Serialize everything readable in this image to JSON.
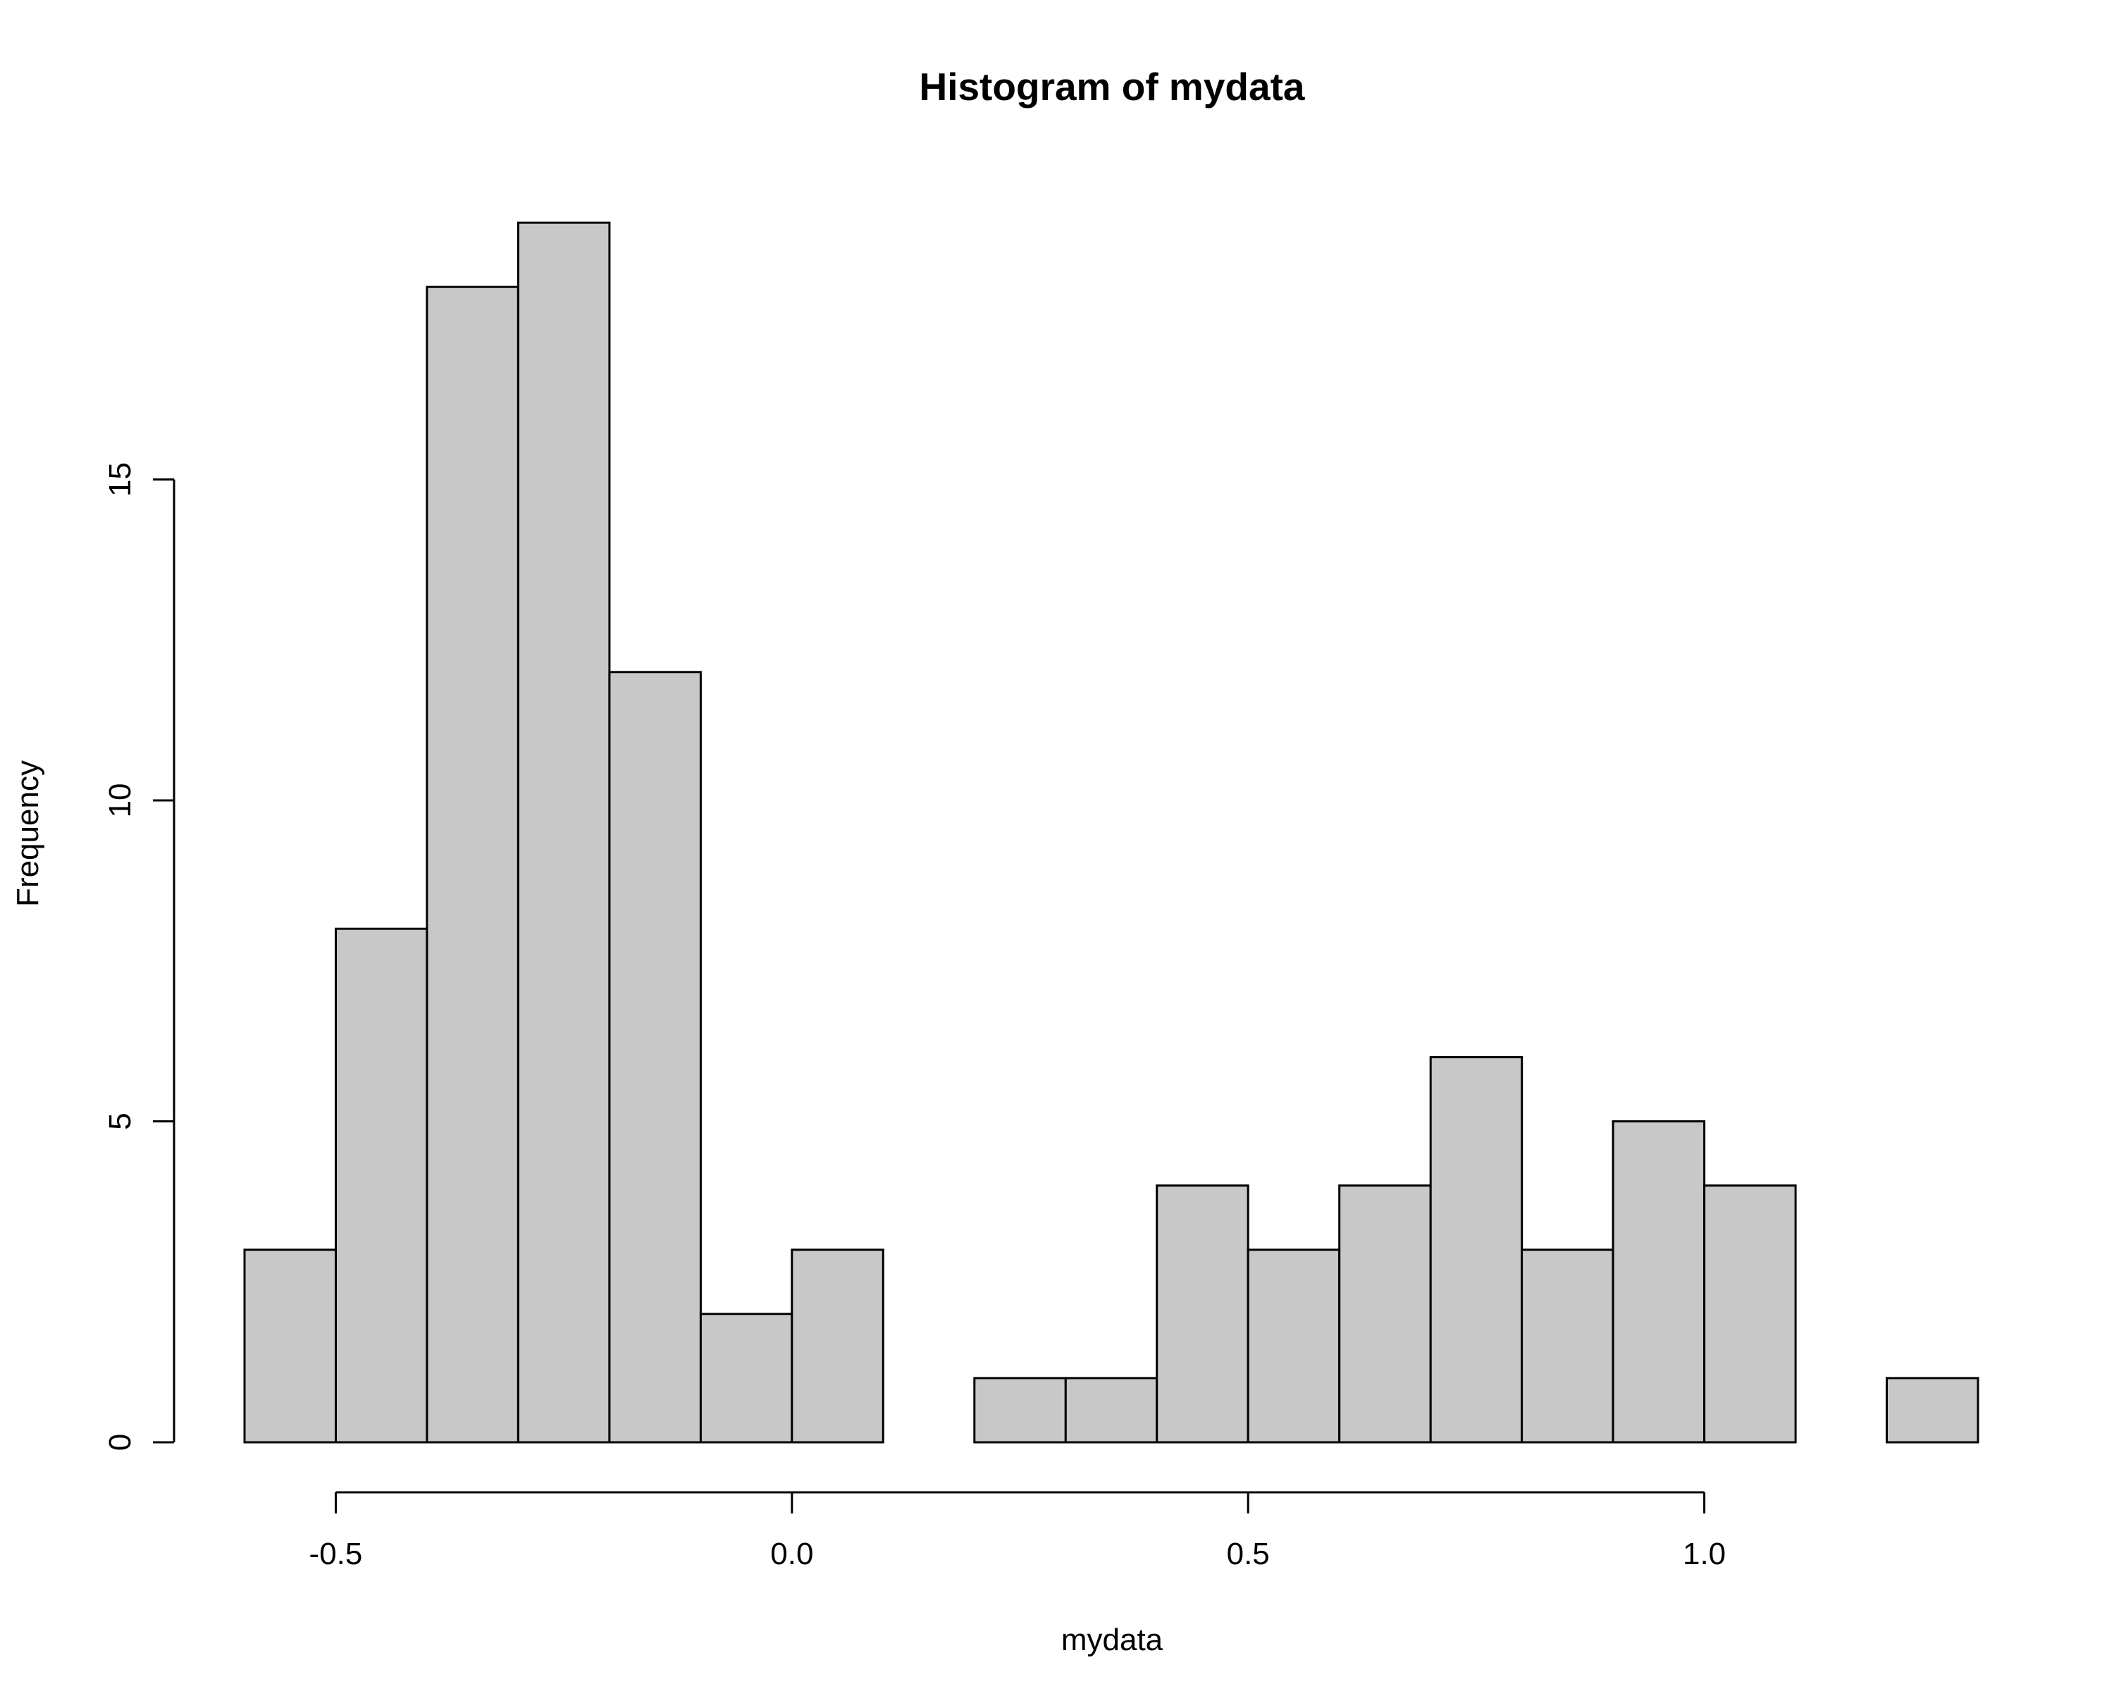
{
  "chart_data": {
    "type": "bar",
    "subtype": "histogram",
    "title": "Histogram of mydata",
    "xlabel": "mydata",
    "ylabel": "Frequency",
    "bin_edges": [
      -0.6,
      -0.5,
      -0.4,
      -0.3,
      -0.2,
      -0.1,
      0.0,
      0.1,
      0.2,
      0.3,
      0.4,
      0.5,
      0.6,
      0.7,
      0.8,
      0.9,
      1.0,
      1.1,
      1.2,
      1.3
    ],
    "counts": [
      3,
      8,
      18,
      19,
      12,
      2,
      3,
      0,
      1,
      1,
      4,
      3,
      4,
      6,
      3,
      5,
      4,
      0,
      1
    ],
    "x_ticks": [
      -0.5,
      0.0,
      0.5,
      1.0
    ],
    "x_tick_labels": [
      "-0.5",
      "0.0",
      "0.5",
      "1.0"
    ],
    "y_ticks": [
      0,
      5,
      10,
      15
    ],
    "y_tick_labels": [
      "0",
      "5",
      "10",
      "15"
    ],
    "xlim": [
      -0.6,
      1.3
    ],
    "ylim": [
      0,
      19
    ],
    "grid": false,
    "colors": {
      "bar_fill": "#c8c8c8",
      "bar_stroke": "#000000",
      "background": "#ffffff"
    }
  }
}
